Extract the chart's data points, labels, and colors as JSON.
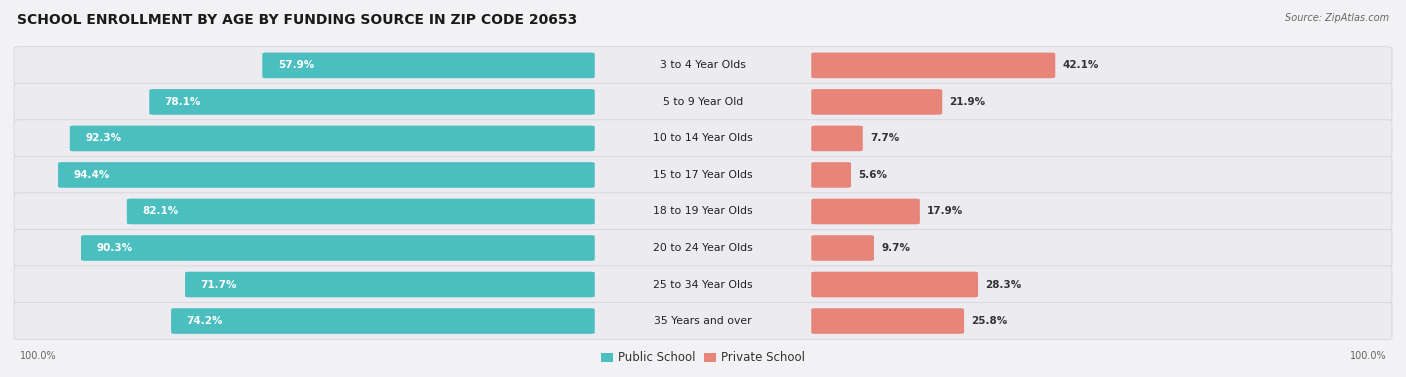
{
  "title": "SCHOOL ENROLLMENT BY AGE BY FUNDING SOURCE IN ZIP CODE 20653",
  "source": "Source: ZipAtlas.com",
  "categories": [
    "3 to 4 Year Olds",
    "5 to 9 Year Old",
    "10 to 14 Year Olds",
    "15 to 17 Year Olds",
    "18 to 19 Year Olds",
    "20 to 24 Year Olds",
    "25 to 34 Year Olds",
    "35 Years and over"
  ],
  "public_values": [
    57.9,
    78.1,
    92.3,
    94.4,
    82.1,
    90.3,
    71.7,
    74.2
  ],
  "private_values": [
    42.1,
    21.9,
    7.7,
    5.6,
    17.9,
    9.7,
    28.3,
    25.8
  ],
  "public_color": "#4bbfbf",
  "private_color": "#e8857a",
  "row_bg_color": "#ebebf0",
  "fig_bg_color": "#f2f2f5",
  "title_fontsize": 10,
  "label_fontsize": 7.8,
  "value_fontsize": 7.5,
  "legend_fontsize": 8.5
}
